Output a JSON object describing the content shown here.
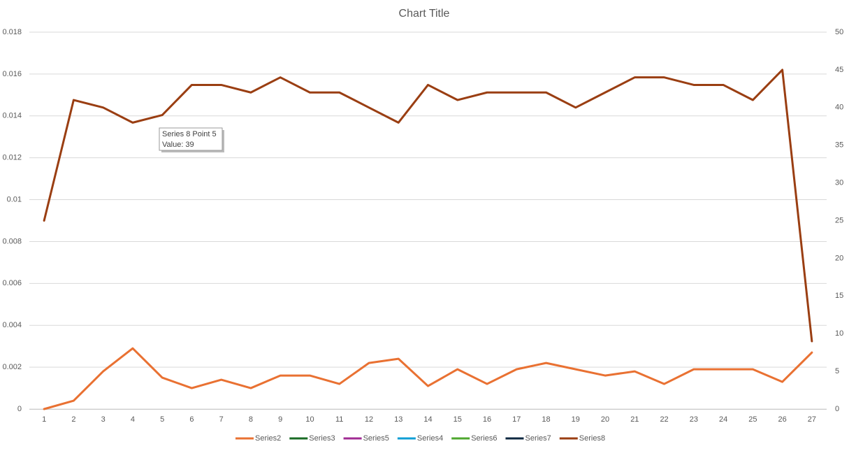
{
  "chart_data": {
    "type": "line",
    "title": "Chart Title",
    "categories": [
      1,
      2,
      3,
      4,
      5,
      6,
      7,
      8,
      9,
      10,
      11,
      12,
      13,
      14,
      15,
      16,
      17,
      18,
      19,
      20,
      21,
      22,
      23,
      24,
      25,
      26,
      27
    ],
    "ylim": [
      0,
      0.018
    ],
    "yticks": [
      0,
      0.002,
      0.004,
      0.006,
      0.008,
      0.01,
      0.012,
      0.014,
      0.016,
      0.018
    ],
    "y2lim": [
      0,
      50
    ],
    "y2ticks": [
      0,
      5,
      10,
      15,
      20,
      25,
      30,
      35,
      40,
      45,
      50
    ],
    "grid": true,
    "legend": "bottom",
    "series": [
      {
        "name": "Series2",
        "color": "#e97132",
        "values": [
          0,
          0.0004,
          0.0018,
          0.0029,
          0.0015,
          0.001,
          0.0014,
          0.001,
          0.0016,
          0.0016,
          0.0012,
          0.0022,
          0.0024,
          0.0011,
          0.0019,
          0.0012,
          0.0019,
          0.0022,
          0.0019,
          0.0016,
          0.0018,
          0.0012,
          0.0019,
          0.0019,
          0.0019,
          0.0013,
          0.0027
        ]
      },
      {
        "name": "Series3",
        "color": "#196b24",
        "values": [
          null,
          null,
          null,
          null,
          null,
          null,
          null,
          null,
          null,
          null,
          null,
          null,
          null,
          null,
          null,
          null,
          null,
          null,
          null,
          null,
          null,
          null,
          null,
          null,
          null,
          null,
          null
        ]
      },
      {
        "name": "Series5",
        "color": "#a02b93",
        "values": [
          null,
          null,
          null,
          null,
          null,
          null,
          null,
          null,
          null,
          null,
          null,
          null,
          null,
          null,
          null,
          null,
          null,
          null,
          null,
          null,
          null,
          null,
          null,
          null,
          null,
          null,
          null
        ]
      },
      {
        "name": "Series4",
        "color": "#0f9ed5",
        "values": [
          null,
          null,
          null,
          null,
          null,
          null,
          null,
          null,
          null,
          null,
          null,
          null,
          null,
          null,
          null,
          null,
          null,
          null,
          null,
          null,
          null,
          null,
          null,
          null,
          null,
          null,
          null
        ]
      },
      {
        "name": "Series6",
        "color": "#4ea72e",
        "values": [
          null,
          null,
          null,
          null,
          null,
          null,
          null,
          null,
          null,
          null,
          null,
          null,
          null,
          null,
          null,
          null,
          null,
          null,
          null,
          null,
          null,
          null,
          null,
          null,
          null,
          null,
          null
        ]
      },
      {
        "name": "Series7",
        "color": "#0e2841",
        "values": [
          null,
          null,
          null,
          null,
          null,
          null,
          null,
          null,
          null,
          null,
          null,
          null,
          null,
          null,
          null,
          null,
          null,
          null,
          null,
          null,
          null,
          null,
          null,
          null,
          null,
          null,
          null
        ]
      },
      {
        "name": "Series8",
        "color": "#9a3e12",
        "axis": "y2",
        "values": [
          25,
          41,
          40,
          38,
          39,
          43,
          43,
          42,
          44,
          42,
          42,
          40,
          38,
          43,
          41,
          42,
          42,
          42,
          40,
          42,
          44,
          44,
          43,
          43,
          41,
          45,
          9
        ]
      }
    ],
    "tooltip": {
      "title": "Series 8 Point 5",
      "text": "Value: 39"
    }
  }
}
